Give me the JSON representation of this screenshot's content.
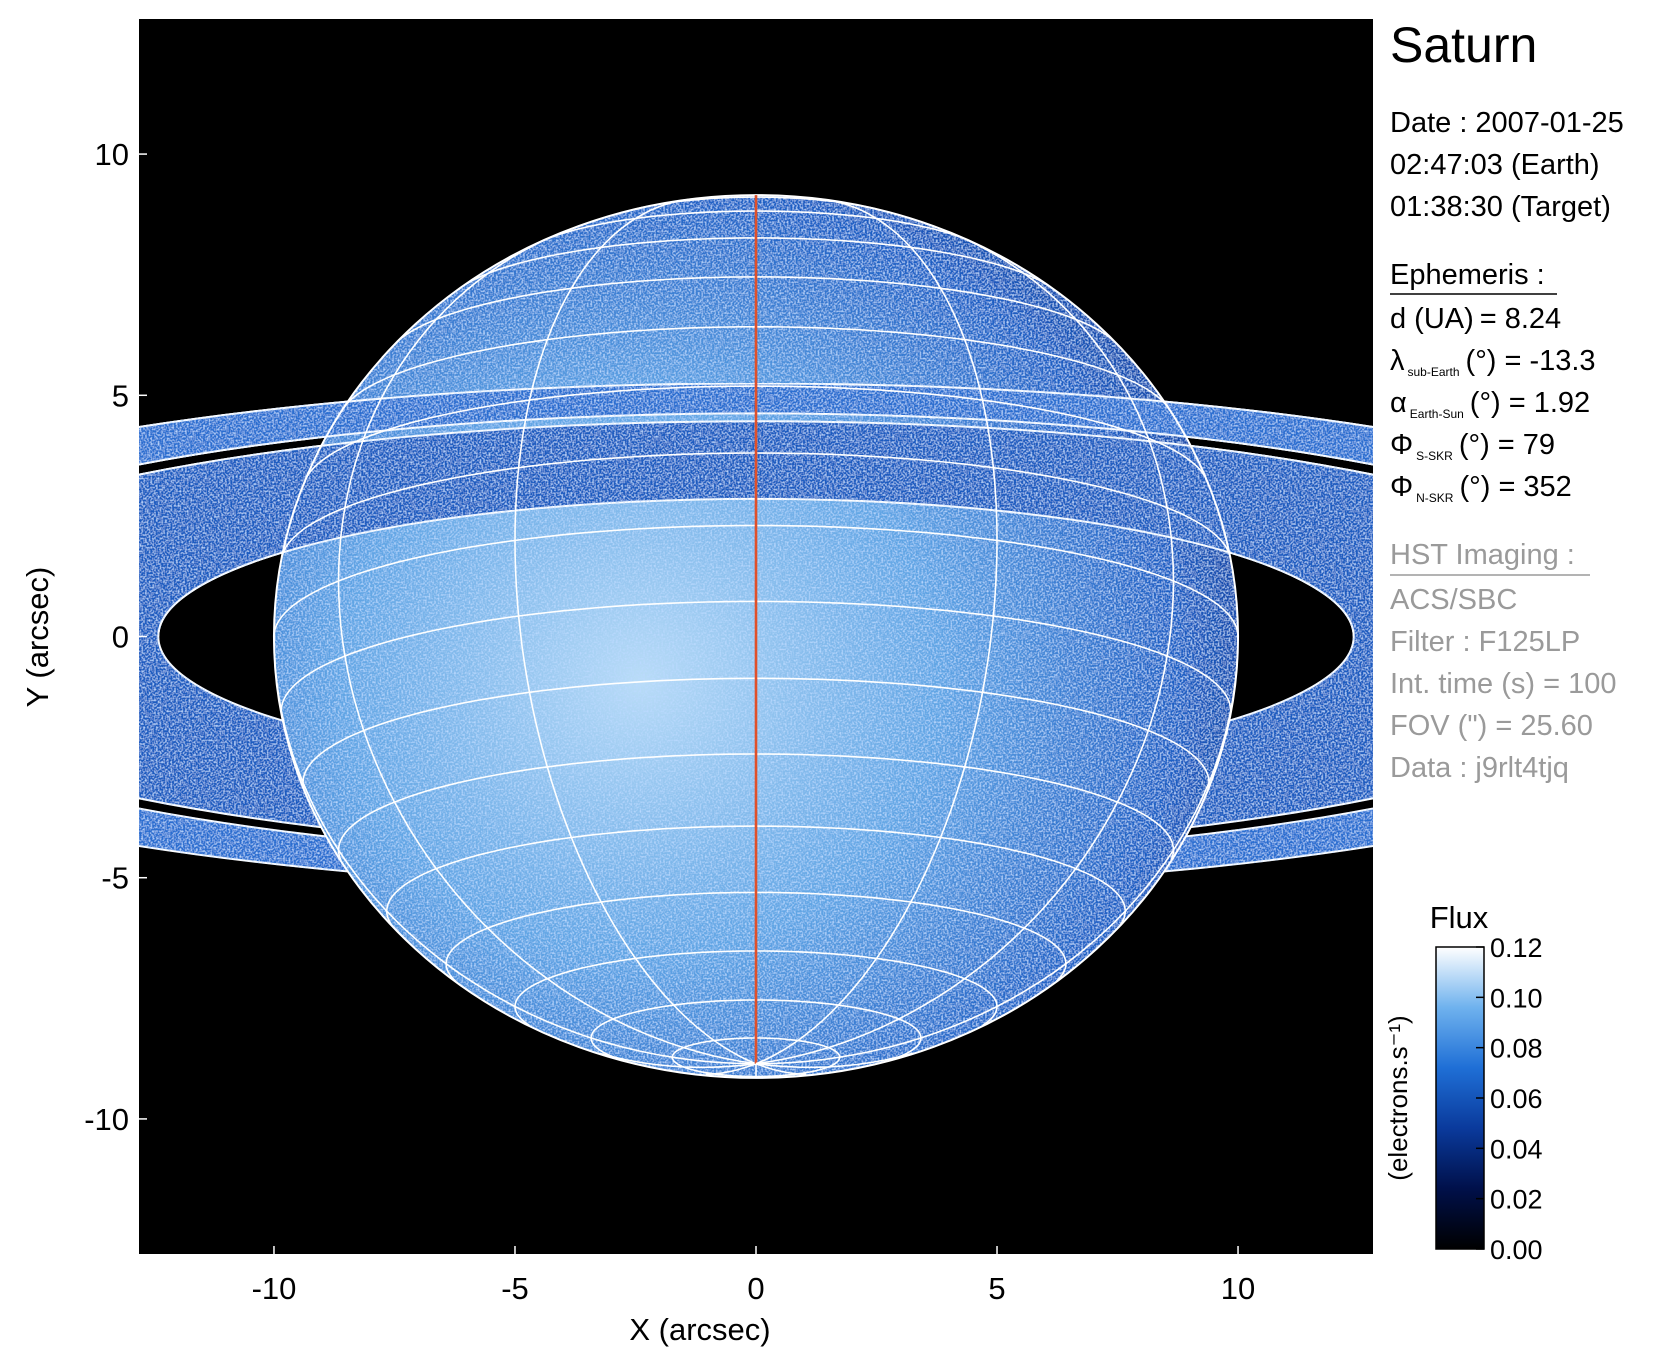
{
  "chart_data": {
    "type": "image",
    "title": "Saturn",
    "xlabel": "X (arcsec)",
    "ylabel": "Y (arcsec)",
    "xlim": [
      -12.8,
      12.8
    ],
    "ylim": [
      -12.8,
      12.8
    ],
    "xticks": [
      -10,
      -5,
      0,
      5,
      10
    ],
    "yticks": [
      -10,
      -5,
      0,
      5,
      10
    ],
    "date_lines": [
      "Date : 2007-01-25",
      "02:47:03 (Earth)",
      "01:38:30 (Target)"
    ],
    "ephemeris_title": "Ephemeris :",
    "ephemeris": [
      {
        "symbol": "d (UA)",
        "unit": "=",
        "value": 8.24
      },
      {
        "symbol": "λ",
        "subscript": "sub-Earth",
        "unit": "(°) =",
        "value": -13.3
      },
      {
        "symbol": "α",
        "subscript": "Earth-Sun",
        "unit": "(°) =",
        "value": 1.92
      },
      {
        "symbol": "Φ",
        "subscript": "S-SKR",
        "unit": "(°)   =",
        "value": 79
      },
      {
        "symbol": "Φ",
        "subscript": "N-SKR",
        "unit": "(°)   =",
        "value": 352
      }
    ],
    "imaging_title": "HST Imaging :",
    "imaging_lines": [
      "ACS/SBC",
      "Filter : F125LP",
      "Int. time (s) = 100",
      "FOV (\") = 25.60",
      "Data : j9rlt4tjq"
    ],
    "colorbar": {
      "title": "Flux",
      "label": "(electrons.s⁻¹)",
      "lim": [
        0,
        0.12
      ],
      "ticks": [
        {
          "value": 0,
          "label": "0.00"
        },
        0.02,
        0.04,
        0.06,
        0.08,
        {
          "value": 0.1,
          "label": "0.10"
        },
        0.12
      ],
      "colors": [
        "#000000",
        "#00104a",
        "#0a3a9c",
        "#1f6fd6",
        "#6fb2ee",
        "#ffffff"
      ]
    }
  }
}
